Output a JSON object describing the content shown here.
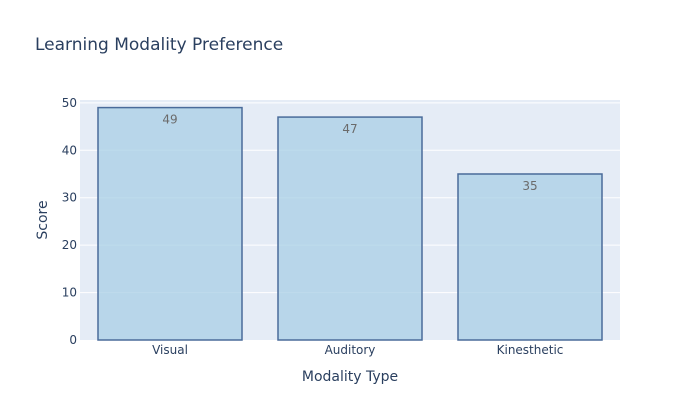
{
  "chart_data": {
    "type": "bar",
    "title": "Learning Modality Preference",
    "xlabel": "Modality Type",
    "ylabel": "Score",
    "categories": [
      "Visual",
      "Auditory",
      "Kinesthetic"
    ],
    "values": [
      49,
      47,
      35
    ],
    "ylim": [
      0,
      50.6
    ],
    "yticks": [
      0,
      10,
      20,
      30,
      40,
      50
    ],
    "grid": true,
    "data_labels": true,
    "colors": {
      "bar_fill": "#a8cfe6",
      "bar_stroke": "#4a6b9a",
      "plot_bg": "#e5ecf6",
      "grid": "#ffffff",
      "text": "#2a3f5f",
      "label_text": "#6b6b6b"
    }
  }
}
